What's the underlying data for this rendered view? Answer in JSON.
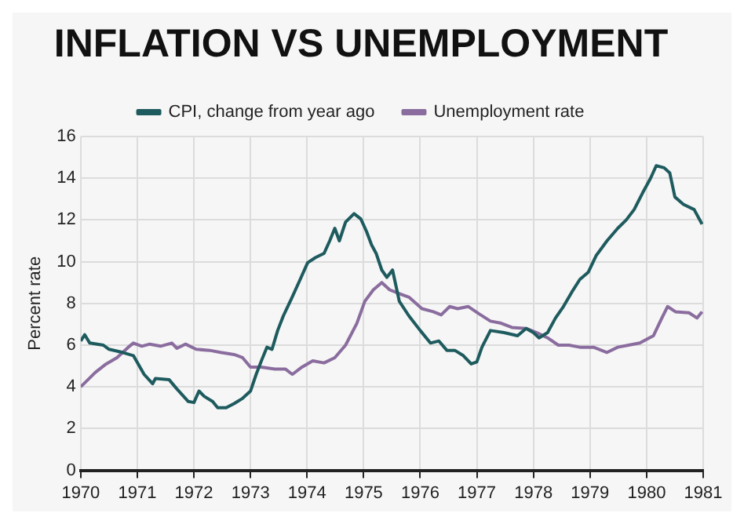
{
  "chart_data": {
    "type": "line",
    "title": "INFLATION VS UNEMPLOYMENT",
    "ylabel": "Percent rate",
    "xlim": [
      1970,
      1981
    ],
    "xticks": [
      1970,
      1971,
      1972,
      1973,
      1974,
      1975,
      1976,
      1977,
      1978,
      1979,
      1980,
      1981
    ],
    "ylim": [
      0,
      16
    ],
    "yticks": [
      0,
      2,
      4,
      6,
      8,
      10,
      12,
      14,
      16
    ],
    "grid": true,
    "legend": "top",
    "marker": "none",
    "line_style": "solid",
    "series": [
      {
        "name": "CPI, change from year ago",
        "color": "#1e5b5e",
        "x": [
          1970,
          1970.07,
          1970.16,
          1970.4,
          1970.5,
          1970.74,
          1970.93,
          1971.12,
          1971.27,
          1971.32,
          1971.56,
          1971.7,
          1971.9,
          1972,
          1972.09,
          1972.18,
          1972.33,
          1972.42,
          1972.57,
          1972.71,
          1972.86,
          1973,
          1973.1,
          1973.2,
          1973.29,
          1973.38,
          1973.48,
          1973.58,
          1973.72,
          1973.87,
          1974.01,
          1974.15,
          1974.3,
          1974.4,
          1974.49,
          1974.57,
          1974.68,
          1974.83,
          1974.95,
          1975.05,
          1975.14,
          1975.22,
          1975.32,
          1975.41,
          1975.51,
          1975.63,
          1975.8,
          1976,
          1976.18,
          1976.33,
          1976.47,
          1976.61,
          1976.76,
          1976.9,
          1977,
          1977.09,
          1977.24,
          1977.48,
          1977.72,
          1977.87,
          1978,
          1978.1,
          1978.25,
          1978.39,
          1978.53,
          1978.68,
          1978.82,
          1978.97,
          1979.11,
          1979.3,
          1979.49,
          1979.64,
          1979.78,
          1979.93,
          1980.07,
          1980.17,
          1980.31,
          1980.41,
          1980.5,
          1980.65,
          1980.84,
          1980.98
        ],
        "values": [
          6.2,
          6.5,
          6.1,
          6.0,
          5.8,
          5.65,
          5.5,
          4.6,
          4.15,
          4.4,
          4.35,
          3.9,
          3.3,
          3.25,
          3.8,
          3.55,
          3.3,
          3.0,
          3.0,
          3.2,
          3.45,
          3.8,
          4.6,
          5.3,
          5.9,
          5.8,
          6.7,
          7.4,
          8.2,
          9.1,
          9.95,
          10.2,
          10.4,
          11.0,
          11.6,
          11.0,
          11.9,
          12.3,
          12.05,
          11.45,
          10.8,
          10.4,
          9.6,
          9.25,
          9.6,
          8.1,
          7.4,
          6.7,
          6.1,
          6.2,
          5.75,
          5.75,
          5.5,
          5.1,
          5.2,
          5.9,
          6.7,
          6.6,
          6.45,
          6.8,
          6.6,
          6.35,
          6.6,
          7.3,
          7.85,
          8.55,
          9.15,
          9.5,
          10.3,
          11.0,
          11.6,
          12.0,
          12.5,
          13.3,
          14.0,
          14.6,
          14.5,
          14.25,
          13.1,
          12.75,
          12.5,
          11.8
        ]
      },
      {
        "name": "Unemployment rate",
        "color": "#8a6d9e",
        "x": [
          1970,
          1970.26,
          1970.45,
          1970.64,
          1970.84,
          1970.93,
          1971.08,
          1971.22,
          1971.41,
          1971.61,
          1971.7,
          1971.85,
          1972.04,
          1972.28,
          1972.47,
          1972.71,
          1972.86,
          1973,
          1973.19,
          1973.43,
          1973.62,
          1973.74,
          1973.91,
          1974.1,
          1974.3,
          1974.49,
          1974.68,
          1974.88,
          1975.02,
          1975.17,
          1975.32,
          1975.46,
          1975.65,
          1975.8,
          1976.03,
          1976.23,
          1976.37,
          1976.52,
          1976.66,
          1976.85,
          1977.04,
          1977.24,
          1977.43,
          1977.62,
          1977.87,
          1978.06,
          1978.25,
          1978.44,
          1978.63,
          1978.82,
          1979.06,
          1979.3,
          1979.49,
          1979.68,
          1979.88,
          1980.12,
          1980.27,
          1980.37,
          1980.51,
          1980.75,
          1980.89,
          1980.98
        ],
        "values": [
          4.0,
          4.7,
          5.1,
          5.4,
          5.9,
          6.1,
          5.95,
          6.05,
          5.95,
          6.1,
          5.85,
          6.05,
          5.8,
          5.75,
          5.65,
          5.55,
          5.4,
          4.95,
          4.95,
          4.85,
          4.85,
          4.6,
          4.95,
          5.25,
          5.15,
          5.4,
          6.0,
          7.05,
          8.1,
          8.65,
          9.0,
          8.65,
          8.45,
          8.3,
          7.75,
          7.6,
          7.45,
          7.85,
          7.75,
          7.85,
          7.5,
          7.15,
          7.05,
          6.85,
          6.8,
          6.6,
          6.35,
          6.0,
          6.0,
          5.9,
          5.9,
          5.65,
          5.9,
          6.0,
          6.1,
          6.45,
          7.3,
          7.85,
          7.6,
          7.55,
          7.3,
          7.6
        ]
      }
    ]
  }
}
